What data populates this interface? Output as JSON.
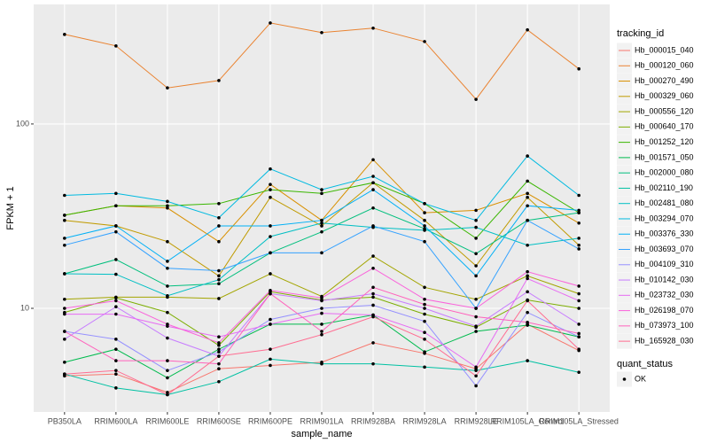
{
  "chart_data": {
    "type": "line",
    "x_label": "sample_name",
    "y_label": "FPKM + 1",
    "categories": [
      "PB350LA",
      "RRIM600LA",
      "RRIM600LE",
      "RRIM600SE",
      "RRIM600PE",
      "RRIM901LA",
      "RRIM928BA",
      "RRIM928LA",
      "RRIM928LE",
      "RRIM105LA_Control",
      "RRIM105LA_Stressed"
    ],
    "ylog": true,
    "ylim": [
      2.74,
      445
    ],
    "yticks": [
      10,
      100
    ],
    "grid": true,
    "legend_title": "tracking_id",
    "legend_position": "right",
    "shape_legend": {
      "title": "quant_status",
      "labels": [
        "OK"
      ]
    },
    "point_color": "#000000",
    "series": [
      {
        "name": "Hb_000015_040",
        "color": "#F8766D",
        "values": [
          4.3,
          4.4,
          3.5,
          4.7,
          4.9,
          5.1,
          6.5,
          5.7,
          4.7,
          8.2,
          5.9
        ]
      },
      {
        "name": "Hb_000120_060",
        "color": "#EA8331",
        "values": [
          306,
          265,
          157,
          172,
          353,
          313,
          331,
          280,
          136,
          324,
          199
        ]
      },
      {
        "name": "Hb_000270_490",
        "color": "#D89000",
        "values": [
          32,
          36,
          35,
          23,
          47,
          30,
          64,
          33,
          34,
          42,
          29
        ]
      },
      {
        "name": "Hb_000329_060",
        "color": "#C09B00",
        "values": [
          30,
          28,
          23,
          15,
          40,
          28,
          48,
          30,
          17,
          40,
          22
        ]
      },
      {
        "name": "Hb_000556_120",
        "color": "#A3A500",
        "values": [
          11.2,
          11.5,
          11.5,
          11.3,
          15.4,
          11.6,
          19.2,
          13,
          11.2,
          15,
          12
        ]
      },
      {
        "name": "Hb_000640_170",
        "color": "#7CAE00",
        "values": [
          9.5,
          11.4,
          9.5,
          6.3,
          12.3,
          11.1,
          11.5,
          9.3,
          7.9,
          11.1,
          10
        ]
      },
      {
        "name": "Hb_001252_120",
        "color": "#39B600",
        "values": [
          32,
          36,
          36,
          37,
          44,
          42,
          48,
          37,
          24,
          49,
          33
        ]
      },
      {
        "name": "Hb_001571_050",
        "color": "#00BB4E",
        "values": [
          5.1,
          6,
          4.2,
          6,
          8.2,
          8.2,
          9.2,
          5.8,
          7.5,
          8.1,
          7
        ]
      },
      {
        "name": "Hb_002000_080",
        "color": "#00BF7D",
        "values": [
          15.4,
          18.4,
          13.2,
          13.6,
          20,
          26,
          35,
          27,
          19.8,
          30,
          33
        ]
      },
      {
        "name": "Hb_002110_190",
        "color": "#00C1A3",
        "values": [
          4.4,
          3.7,
          3.4,
          4,
          5.3,
          5,
          5,
          4.8,
          4.6,
          5.2,
          4.5
        ]
      },
      {
        "name": "Hb_002481_080",
        "color": "#00BFC4",
        "values": [
          15.4,
          15.3,
          11.7,
          14.3,
          24.5,
          29,
          27.5,
          26.5,
          27.5,
          22,
          24
        ]
      },
      {
        "name": "Hb_003294_070",
        "color": "#00BAE0",
        "values": [
          41,
          42,
          38,
          31,
          57,
          44,
          52,
          37,
          30,
          67,
          41
        ]
      },
      {
        "name": "Hb_003376_330",
        "color": "#00B0F6",
        "values": [
          24,
          28,
          18,
          28,
          28,
          30,
          44,
          28,
          15,
          36,
          34
        ]
      },
      {
        "name": "Hb_003693_070",
        "color": "#35A2FF",
        "values": [
          22,
          26,
          16.5,
          16,
          20,
          20,
          28,
          23,
          10,
          30,
          21
        ]
      },
      {
        "name": "Hb_004109_310",
        "color": "#9590FF",
        "values": [
          7.5,
          6.8,
          4.6,
          5.8,
          8.7,
          10,
          10.4,
          8.5,
          3.8,
          9.5,
          7
        ]
      },
      {
        "name": "Hb_010142_030",
        "color": "#C77CFF",
        "values": [
          6.8,
          10.2,
          6.9,
          5.5,
          12,
          11,
          12,
          10,
          8,
          12.3,
          8.2
        ]
      },
      {
        "name": "Hb_023732_030",
        "color": "#E76BF3",
        "values": [
          9.3,
          9.3,
          8,
          7,
          8.2,
          9.4,
          9.2,
          7.4,
          4.8,
          14.5,
          11
        ]
      },
      {
        "name": "Hb_026198_070",
        "color": "#FA62DB",
        "values": [
          10,
          11,
          8.2,
          6.5,
          12.5,
          11.4,
          16.5,
          11.2,
          10,
          15.8,
          13.2
        ]
      },
      {
        "name": "Hb_073973_100",
        "color": "#FF62BC",
        "values": [
          7.5,
          5.2,
          5.2,
          5,
          12,
          7.5,
          13,
          10.5,
          9,
          8.4,
          7.3
        ]
      },
      {
        "name": "Hb_165928_030",
        "color": "#FF6C91",
        "values": [
          4.4,
          4.6,
          3.4,
          5.5,
          6,
          7.2,
          9,
          6.8,
          4.3,
          11,
          6
        ]
      }
    ]
  }
}
